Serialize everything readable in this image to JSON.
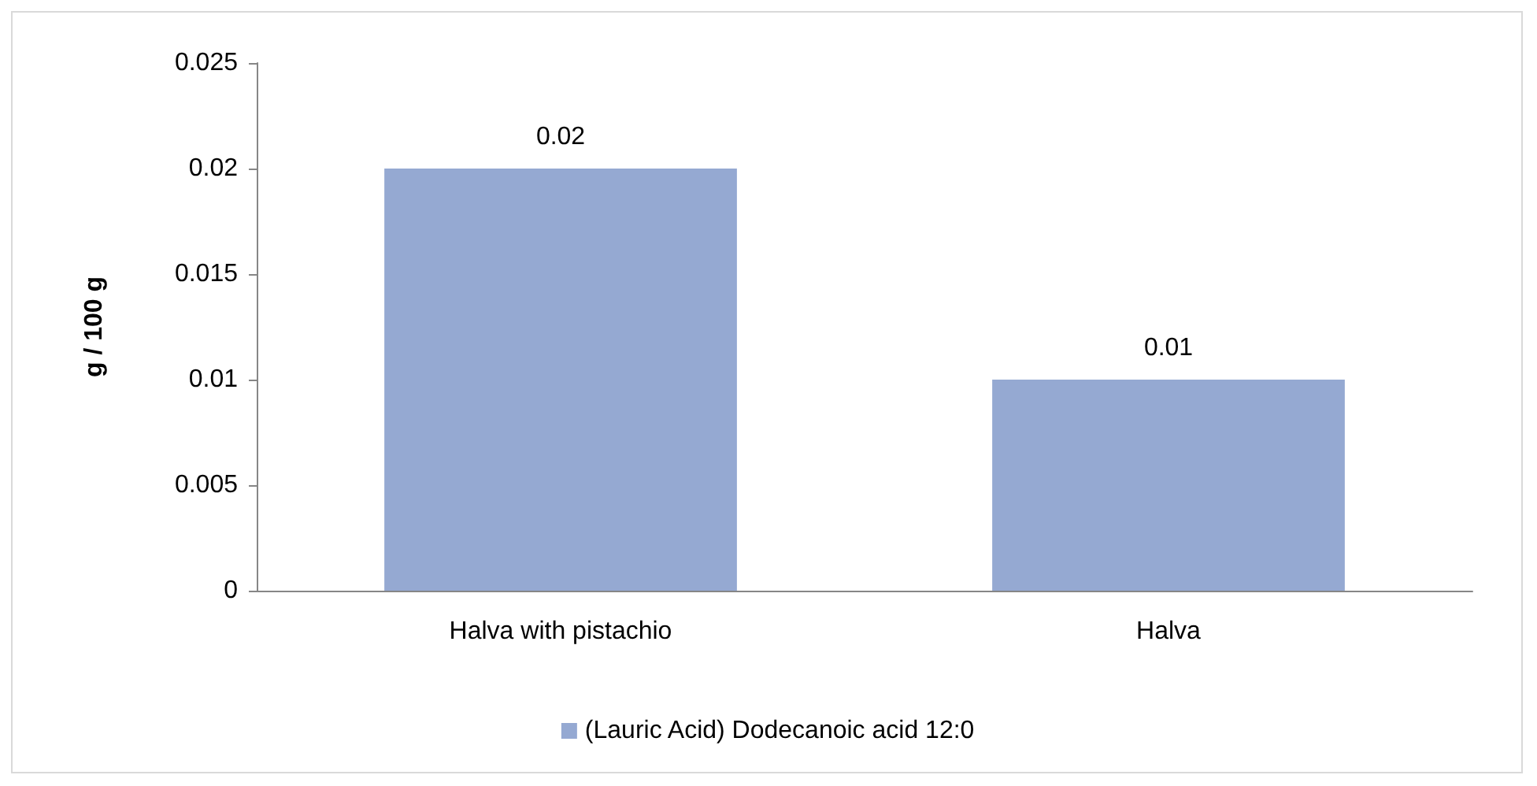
{
  "chart_data": {
    "type": "bar",
    "ylabel": "g / 100 g",
    "categories": [
      "Halva with pistachio",
      "Halva"
    ],
    "series": [
      {
        "name": "(Lauric Acid) Dodecanoic acid 12:0",
        "color": "#95a9d2",
        "values": [
          0.02,
          0.01
        ]
      }
    ],
    "ylim": [
      0,
      0.025
    ],
    "yticks": [
      0,
      0.005,
      0.01,
      0.015,
      0.02,
      0.025
    ],
    "data_labels": true,
    "grid": false,
    "legend": "bottom"
  }
}
